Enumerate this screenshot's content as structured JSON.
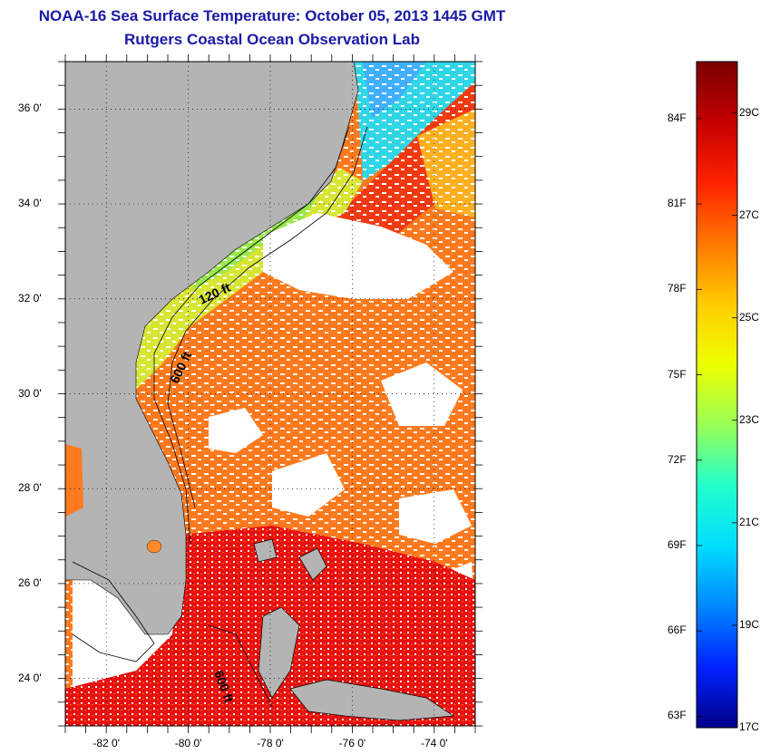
{
  "header": {
    "title": "NOAA-16 Sea Surface Temperature:  October 05, 2013 1445 GMT",
    "subtitle": "Rutgers Coastal Ocean Observation Lab"
  },
  "map": {
    "lat_labels": [
      "36 0'",
      "34 0'",
      "32 0'",
      "30 0'",
      "28 0'",
      "26 0'",
      "24 0'"
    ],
    "lat_values": [
      36,
      34,
      32,
      30,
      28,
      26,
      24
    ],
    "lon_labels": [
      "-82 0'",
      "-80 0'",
      "-78 0'",
      "-76 0'",
      "-74 0'"
    ],
    "lon_values": [
      -82,
      -80,
      -78,
      -76,
      -74
    ],
    "lat_range": [
      23,
      37
    ],
    "lon_range": [
      -83,
      -73
    ],
    "contour_labels": [
      "120 ft",
      "600 ft",
      "600 ft"
    ],
    "colors": {
      "land": "#b4b4b4",
      "cloud": "#ffffff",
      "shelf_cool": "#c8e632",
      "gulf_stream": "#f03c14",
      "warm_ocean": "#ff7819"
    }
  },
  "colorbar": {
    "fahrenheit_labels": [
      "84F",
      "81F",
      "78F",
      "75F",
      "72F",
      "69F",
      "66F",
      "63F"
    ],
    "celsius_labels": [
      "29C",
      "27C",
      "25C",
      "23C",
      "21C",
      "19C",
      "17C"
    ],
    "celsius_values": [
      29,
      27,
      25,
      23,
      21,
      19,
      17
    ],
    "celsius_range": [
      17,
      30
    ],
    "gradient": [
      "#7a0000",
      "#c40000",
      "#ff2200",
      "#ff7700",
      "#ffcc00",
      "#eeff00",
      "#99ff55",
      "#22ffcc",
      "#00ddff",
      "#0088ff",
      "#0022ff",
      "#000088"
    ]
  }
}
